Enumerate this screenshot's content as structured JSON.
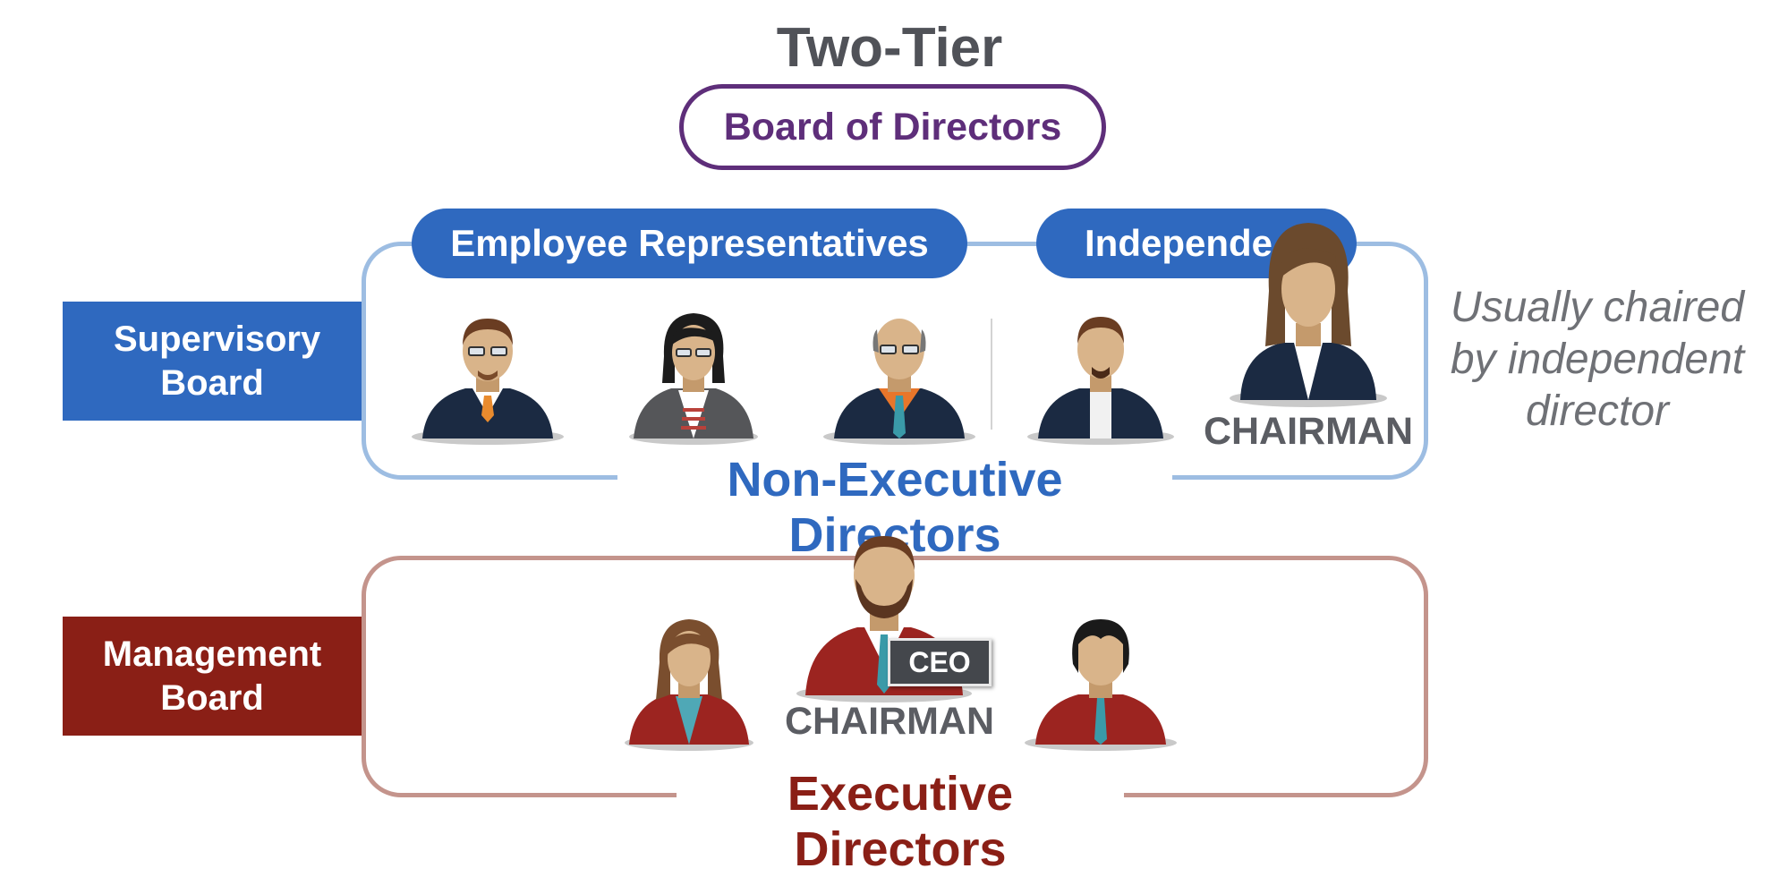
{
  "title": "Two-Tier",
  "board_of_directors": "Board of Directors",
  "supervisory": {
    "side_label": "Supervisory Board",
    "group_left": "Employee Representatives",
    "group_right": "Independe",
    "box_label": "Non-Executive Directors",
    "chairman": "CHAIRMAN",
    "note": "Usually chaired by independent director"
  },
  "management": {
    "side_label": "Management Board",
    "box_label": "Executive Directors",
    "chairman": "CHAIRMAN",
    "ceo_badge": "CEO"
  },
  "colors": {
    "supervisory_blue": "#2f69bf",
    "management_red": "#8a1f16",
    "board_purple": "#5e2e7a",
    "text_gray": "#505258"
  }
}
